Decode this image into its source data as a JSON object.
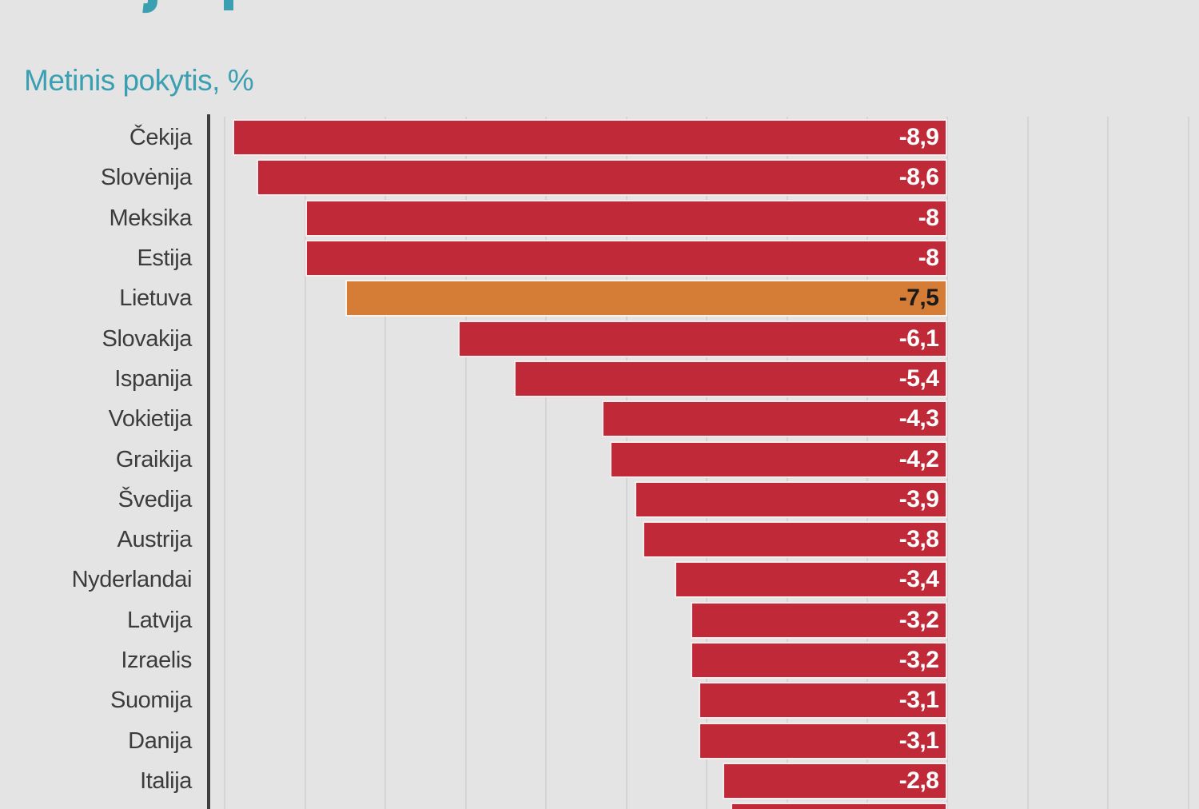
{
  "header": {
    "subtitle": "Metinis pokytis, %"
  },
  "colors": {
    "background": "#e4e4e4",
    "accent_teal": "#3aa0b1",
    "bar_red": "#c02a38",
    "bar_highlight_orange": "#d57d36",
    "category_label_gray": "#3c3c3c",
    "value_text_light": "#ffffff",
    "value_text_dark": "#1a1a1a",
    "gridline": "#d4d4d4",
    "axis_line": "#3e3e3e"
  },
  "chart_data": {
    "type": "bar",
    "orientation": "horizontal",
    "subtitle": "Metinis pokytis, %",
    "title_note": "title cropped out of view; only letter descenders visible",
    "categories": [
      "Čekija",
      "Slovėnija",
      "Meksika",
      "Estija",
      "Lietuva",
      "Slovakija",
      "Ispanija",
      "Vokietija",
      "Graikija",
      "Švedija",
      "Austrija",
      "Nyderlandai",
      "Latvija",
      "Izraelis",
      "Suomija",
      "Danija",
      "Italija"
    ],
    "values": [
      -8.9,
      -8.6,
      -8,
      -8,
      -7.5,
      -6.1,
      -5.4,
      -4.3,
      -4.2,
      -3.9,
      -3.8,
      -3.4,
      -3.2,
      -3.2,
      -3.1,
      -3.1,
      -2.8
    ],
    "highlight_category": "Lietuva",
    "rows": [
      {
        "label": "Čekija",
        "value": -8.9,
        "display": "-8,9",
        "highlight": false,
        "partial": false
      },
      {
        "label": "Slovėnija",
        "value": -8.6,
        "display": "-8,6",
        "highlight": false,
        "partial": false
      },
      {
        "label": "Meksika",
        "value": -8,
        "display": "-8",
        "highlight": false,
        "partial": false
      },
      {
        "label": "Estija",
        "value": -8,
        "display": "-8",
        "highlight": false,
        "partial": false
      },
      {
        "label": "Lietuva",
        "value": -7.5,
        "display": "-7,5",
        "highlight": true,
        "partial": false
      },
      {
        "label": "Slovakija",
        "value": -6.1,
        "display": "-6,1",
        "highlight": false,
        "partial": false
      },
      {
        "label": "Ispanija",
        "value": -5.4,
        "display": "-5,4",
        "highlight": false,
        "partial": false
      },
      {
        "label": "Vokietija",
        "value": -4.3,
        "display": "-4,3",
        "highlight": false,
        "partial": false
      },
      {
        "label": "Graikija",
        "value": -4.2,
        "display": "-4,2",
        "highlight": false,
        "partial": false
      },
      {
        "label": "Švedija",
        "value": -3.9,
        "display": "-3,9",
        "highlight": false,
        "partial": false
      },
      {
        "label": "Austrija",
        "value": -3.8,
        "display": "-3,8",
        "highlight": false,
        "partial": false
      },
      {
        "label": "Nyderlandai",
        "value": -3.4,
        "display": "-3,4",
        "highlight": false,
        "partial": false
      },
      {
        "label": "Latvija",
        "value": -3.2,
        "display": "-3,2",
        "highlight": false,
        "partial": false
      },
      {
        "label": "Izraelis",
        "value": -3.2,
        "display": "-3,2",
        "highlight": false,
        "partial": false
      },
      {
        "label": "Suomija",
        "value": -3.1,
        "display": "-3,1",
        "highlight": false,
        "partial": false
      },
      {
        "label": "Danija",
        "value": -3.1,
        "display": "-3,1",
        "highlight": false,
        "partial": false
      },
      {
        "label": "Italija",
        "value": -2.8,
        "display": "-2,8",
        "highlight": false,
        "partial": false
      },
      {
        "label": "",
        "value": -2.7,
        "display": "",
        "highlight": false,
        "partial": true
      }
    ],
    "x_axis": {
      "min": -9.2,
      "max": 3.13,
      "gridline_step": 1,
      "gridlines": [
        -9,
        -8,
        -7,
        -6,
        -5,
        -4,
        -3,
        -2,
        -1,
        0,
        1,
        2,
        3
      ],
      "zero_baseline": 0,
      "tick_labels_visible": false
    },
    "legend": {
      "visible": false
    },
    "grid": "vertical"
  }
}
